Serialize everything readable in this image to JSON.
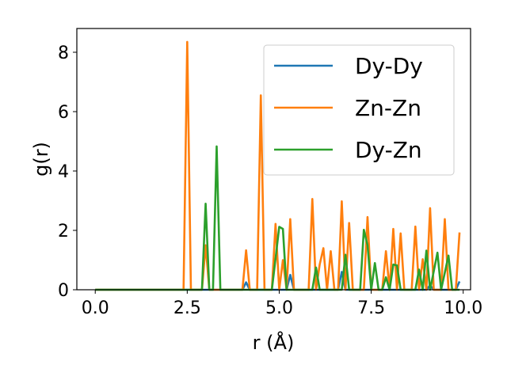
{
  "chart_data": {
    "type": "line",
    "title": "",
    "xlabel": "r (Å)",
    "ylabel": "g(r)",
    "xlim": [
      -0.5,
      10.2
    ],
    "ylim": [
      0,
      8.8
    ],
    "xticks": [
      0.0,
      2.5,
      5.0,
      7.5,
      10.0
    ],
    "xtick_labels": [
      "0.0",
      "2.5",
      "5.0",
      "7.5",
      "10.0"
    ],
    "yticks": [
      0,
      2,
      4,
      6,
      8
    ],
    "ytick_labels": [
      "0",
      "2",
      "4",
      "6",
      "8"
    ],
    "grid": false,
    "legend_position": "top-right",
    "series": [
      {
        "name": "Dy-Dy",
        "color": "#1f77b4",
        "points": [
          [
            0.0,
            0
          ],
          [
            4.0,
            0
          ],
          [
            4.1,
            0.25
          ],
          [
            4.2,
            0
          ],
          [
            5.2,
            0
          ],
          [
            5.3,
            0.5
          ],
          [
            5.4,
            0
          ],
          [
            6.6,
            0
          ],
          [
            6.7,
            0.6
          ],
          [
            6.8,
            0
          ],
          [
            9.0,
            0
          ],
          [
            9.1,
            0.15
          ],
          [
            9.2,
            0
          ],
          [
            9.8,
            0
          ],
          [
            9.9,
            0.28
          ]
        ]
      },
      {
        "name": "Zn-Zn",
        "color": "#ff7f0e",
        "points": [
          [
            0.0,
            0
          ],
          [
            2.4,
            0
          ],
          [
            2.5,
            8.35
          ],
          [
            2.6,
            0
          ],
          [
            2.9,
            0
          ],
          [
            3.0,
            1.5
          ],
          [
            3.1,
            0
          ],
          [
            4.0,
            0
          ],
          [
            4.1,
            1.33
          ],
          [
            4.2,
            0
          ],
          [
            4.4,
            0
          ],
          [
            4.5,
            6.55
          ],
          [
            4.6,
            0
          ],
          [
            4.8,
            0
          ],
          [
            4.9,
            2.22
          ],
          [
            5.0,
            0
          ],
          [
            5.1,
            1.0
          ],
          [
            5.2,
            0
          ],
          [
            5.3,
            2.38
          ],
          [
            5.4,
            0
          ],
          [
            5.8,
            0
          ],
          [
            5.9,
            3.06
          ],
          [
            6.0,
            0
          ],
          [
            6.1,
            0.85
          ],
          [
            6.2,
            1.4
          ],
          [
            6.3,
            0
          ],
          [
            6.4,
            1.3
          ],
          [
            6.5,
            0
          ],
          [
            6.6,
            0
          ],
          [
            6.7,
            2.98
          ],
          [
            6.8,
            0
          ],
          [
            6.9,
            2.25
          ],
          [
            7.0,
            0
          ],
          [
            7.3,
            0
          ],
          [
            7.4,
            2.45
          ],
          [
            7.5,
            0
          ],
          [
            7.8,
            0
          ],
          [
            7.9,
            1.3
          ],
          [
            8.0,
            0
          ],
          [
            8.1,
            2.05
          ],
          [
            8.2,
            0
          ],
          [
            8.3,
            1.9
          ],
          [
            8.4,
            0
          ],
          [
            8.6,
            0
          ],
          [
            8.7,
            2.13
          ],
          [
            8.8,
            0
          ],
          [
            8.9,
            1.03
          ],
          [
            9.0,
            0
          ],
          [
            9.1,
            2.75
          ],
          [
            9.2,
            0
          ],
          [
            9.4,
            0
          ],
          [
            9.5,
            2.38
          ],
          [
            9.6,
            0
          ],
          [
            9.8,
            0
          ],
          [
            9.9,
            1.93
          ]
        ]
      },
      {
        "name": "Dy-Zn",
        "color": "#2ca02c",
        "points": [
          [
            0.0,
            0
          ],
          [
            2.9,
            0
          ],
          [
            3.0,
            2.9
          ],
          [
            3.1,
            0
          ],
          [
            3.2,
            0
          ],
          [
            3.3,
            4.83
          ],
          [
            3.4,
            0
          ],
          [
            4.8,
            0
          ],
          [
            4.9,
            1.05
          ],
          [
            5.0,
            2.12
          ],
          [
            5.1,
            2.05
          ],
          [
            5.2,
            0
          ],
          [
            5.9,
            0
          ],
          [
            6.0,
            0.75
          ],
          [
            6.1,
            0
          ],
          [
            6.7,
            0
          ],
          [
            6.8,
            1.18
          ],
          [
            6.9,
            0
          ],
          [
            7.2,
            0
          ],
          [
            7.3,
            2.02
          ],
          [
            7.4,
            1.5
          ],
          [
            7.5,
            0
          ],
          [
            7.6,
            0.9
          ],
          [
            7.7,
            0
          ],
          [
            7.8,
            0
          ],
          [
            7.9,
            0.42
          ],
          [
            8.0,
            0
          ],
          [
            8.1,
            0.85
          ],
          [
            8.2,
            0.82
          ],
          [
            8.3,
            0
          ],
          [
            8.7,
            0
          ],
          [
            8.8,
            0.68
          ],
          [
            8.9,
            0
          ],
          [
            9.0,
            1.32
          ],
          [
            9.1,
            0
          ],
          [
            9.3,
            1.25
          ],
          [
            9.4,
            0
          ],
          [
            9.6,
            1.15
          ],
          [
            9.7,
            0
          ],
          [
            9.9,
            0
          ]
        ]
      }
    ]
  }
}
